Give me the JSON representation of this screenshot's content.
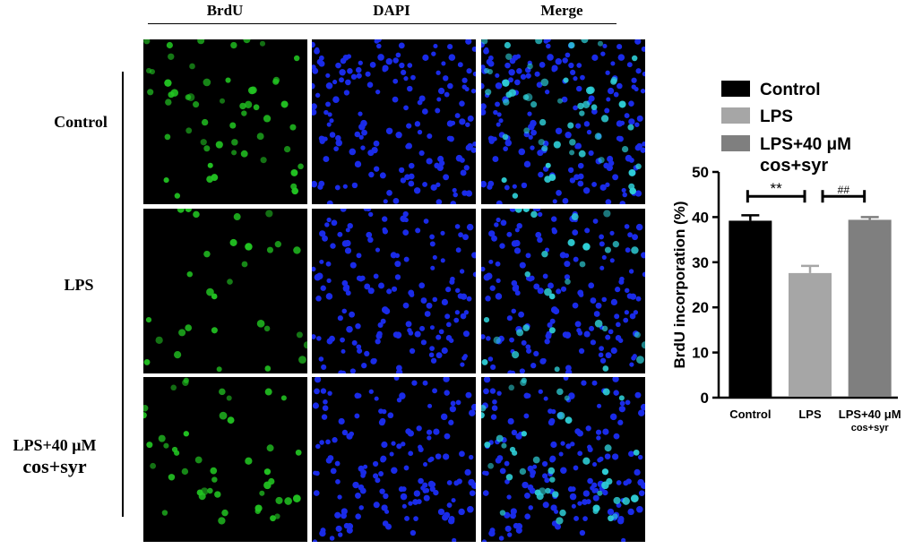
{
  "columns": [
    "BrdU",
    "DAPI",
    "Merge"
  ],
  "rows": [
    {
      "label_line1": "Control",
      "label_line2": ""
    },
    {
      "label_line1": "LPS",
      "label_line2": ""
    },
    {
      "label_line1": "LPS+40 μM",
      "label_line2": "cos+syr"
    }
  ],
  "colors": {
    "brdu_nucleus": "#22c422",
    "dapi_nucleus": "#1a2be8",
    "merge_overlap": "#2fd0d8",
    "panel_background": "#000000"
  },
  "chart_data": {
    "type": "bar",
    "categories": [
      "Control",
      "LPS",
      "LPS+40 μM cos+syr"
    ],
    "category_tick_labels": [
      [
        "Control"
      ],
      [
        "LPS"
      ],
      [
        "LPS+40 μM",
        "cos+syr"
      ]
    ],
    "values": [
      39.2,
      27.6,
      39.4
    ],
    "errors": [
      1.2,
      1.6,
      0.6
    ],
    "colors": [
      "#000000",
      "#a6a6a6",
      "#7f7f7f"
    ],
    "ylabel": "BrdU incorporation (%)",
    "ylim": [
      0,
      50
    ],
    "yticks": [
      0,
      10,
      20,
      30,
      40,
      50
    ],
    "grid": false,
    "legend": {
      "position": "top",
      "entries": [
        {
          "label_line1": "Control",
          "label_line2": "",
          "color": "#000000"
        },
        {
          "label_line1": "LPS",
          "label_line2": "",
          "color": "#a6a6a6"
        },
        {
          "label_line1": "LPS+40 μM",
          "label_line2": "cos+syr",
          "color": "#7f7f7f"
        }
      ]
    },
    "significance": [
      {
        "from": 0,
        "to": 1,
        "label": "**"
      },
      {
        "from": 1,
        "to": 2,
        "label": "##"
      }
    ]
  }
}
